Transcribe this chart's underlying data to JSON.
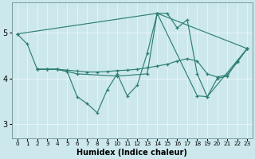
{
  "xlabel": "Humidex (Indice chaleur)",
  "bg_color": "#cce8ec",
  "grid_color": "#ffffff",
  "line_color": "#2e7f74",
  "xlim": [
    -0.5,
    23.5
  ],
  "ylim": [
    2.7,
    5.65
  ],
  "yticks": [
    3,
    4,
    5
  ],
  "xticks": [
    0,
    1,
    2,
    3,
    4,
    5,
    6,
    7,
    8,
    9,
    10,
    11,
    12,
    13,
    14,
    15,
    16,
    17,
    18,
    19,
    20,
    21,
    22,
    23
  ],
  "line1_x": [
    0,
    1,
    2,
    3,
    4,
    5,
    6,
    7,
    8,
    9,
    10,
    11,
    12,
    13,
    14,
    15,
    16,
    17,
    18,
    19,
    20,
    21,
    22,
    23
  ],
  "line1_y": [
    4.97,
    4.75,
    4.2,
    4.2,
    4.2,
    4.15,
    3.6,
    3.45,
    3.25,
    3.75,
    4.1,
    3.62,
    3.85,
    4.55,
    5.42,
    5.42,
    5.1,
    5.28,
    4.1,
    3.6,
    4.0,
    4.05,
    4.38,
    4.65
  ],
  "line2_x": [
    2,
    3,
    4,
    5,
    6,
    7,
    8,
    9,
    10,
    11,
    12,
    13,
    14,
    15,
    16,
    17,
    18,
    19,
    20,
    21,
    22,
    23
  ],
  "line2_y": [
    4.2,
    4.2,
    4.2,
    4.18,
    4.16,
    4.14,
    4.14,
    4.15,
    4.17,
    4.18,
    4.2,
    4.23,
    4.27,
    4.31,
    4.38,
    4.43,
    4.38,
    4.1,
    4.03,
    4.08,
    4.35,
    4.65
  ],
  "line3_x": [
    0,
    14,
    23
  ],
  "line3_y": [
    4.97,
    5.42,
    4.65
  ],
  "line4_x": [
    2,
    3,
    4,
    5,
    6,
    10,
    13,
    14,
    18,
    19,
    23
  ],
  "line4_y": [
    4.2,
    4.2,
    4.2,
    4.15,
    4.1,
    4.05,
    4.1,
    5.42,
    3.62,
    3.6,
    4.65
  ]
}
